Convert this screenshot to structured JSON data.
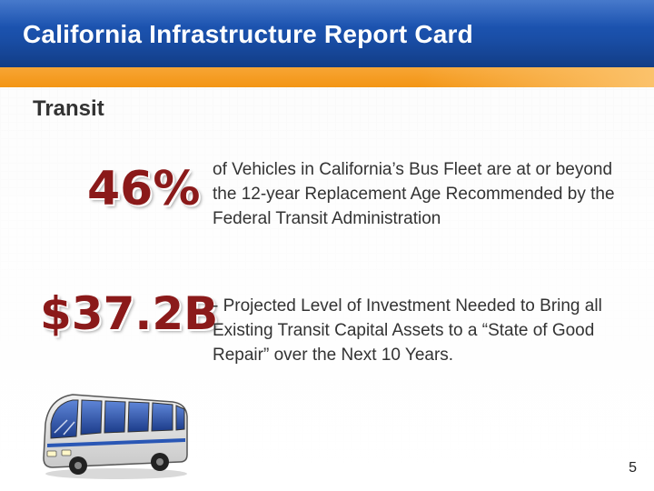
{
  "header": {
    "title": "California Infrastructure Report Card"
  },
  "section": {
    "heading": "Transit"
  },
  "stats": [
    {
      "value": "46%",
      "description": "of Vehicles in California’s Bus Fleet are at or beyond the 12-year Replacement Age Recommended by the Federal Transit Administration"
    },
    {
      "value": "$37.2B",
      "description": "- Projected Level of Investment Needed to Bring all Existing Transit Capital Assets to a “State of Good Repair” over the Next 10 Years."
    }
  ],
  "illustration": {
    "icon": "bus-icon"
  },
  "footer": {
    "page_number": "5"
  },
  "colors": {
    "title_bar": "#1a4fa8",
    "accent_bar": "#f39514",
    "stat_text": "#8b1a1a",
    "body_text": "#333333"
  }
}
